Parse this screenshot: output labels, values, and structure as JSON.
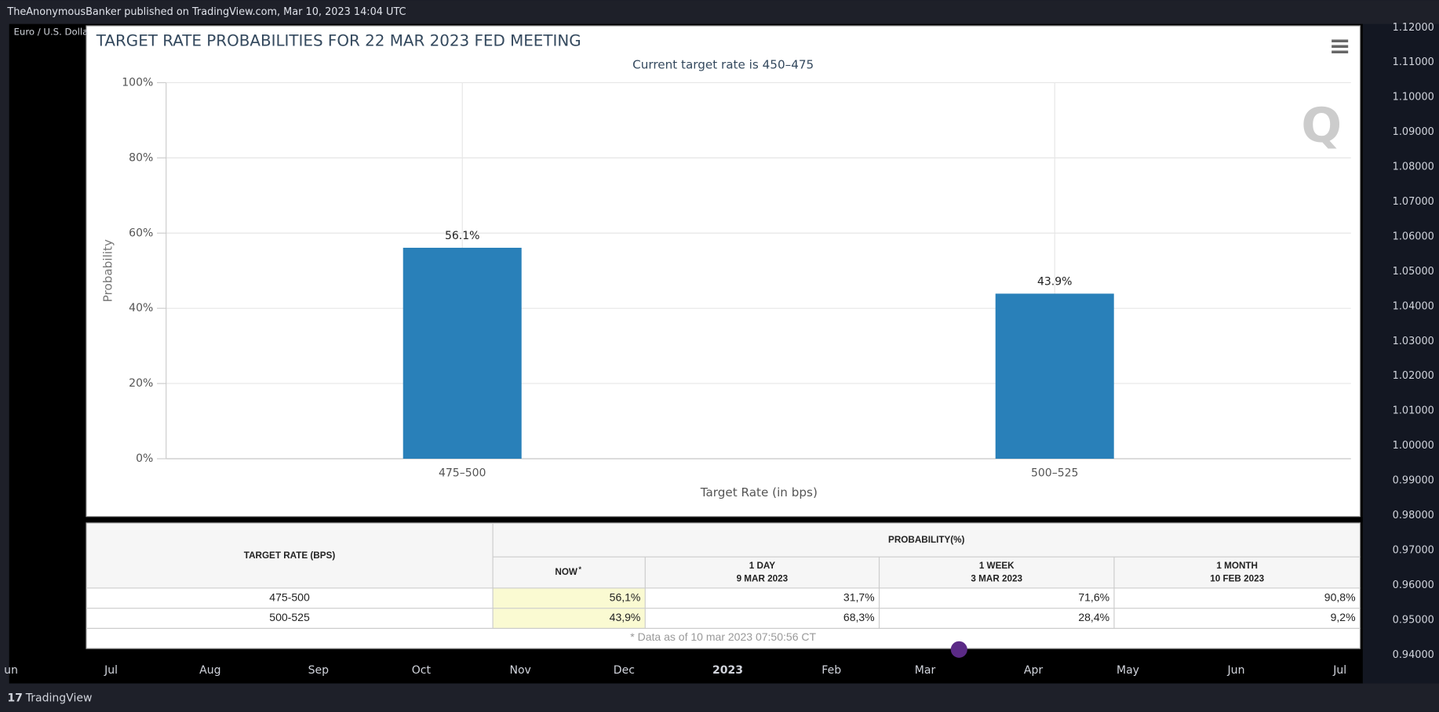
{
  "header": "TheAnonymousBanker published on TradingView.com, Mar 10, 2023 14:04 UTC",
  "symbol": "Euro / U.S. Dolla",
  "price_axis": [
    "1.12000",
    "1.11000",
    "1.10000",
    "1.09000",
    "1.08000",
    "1.07000",
    "1.06000",
    "1.05000",
    "1.04000",
    "1.03000",
    "1.02000",
    "1.01000",
    "1.00000",
    "0.99000",
    "0.98000",
    "0.97000",
    "0.96000",
    "0.95000",
    "0.94000"
  ],
  "time_axis": [
    "un",
    "Jul",
    "Aug",
    "Sep",
    "Oct",
    "Nov",
    "Dec",
    "2023",
    "Feb",
    "Mar",
    "Apr",
    "May",
    "Jun",
    "Jul"
  ],
  "footer": "TradingView",
  "chart_data": {
    "type": "bar",
    "title": "TARGET RATE PROBABILITIES FOR 22 MAR 2023 FED MEETING",
    "subtitle": "Current target rate is 450–475",
    "x_label": "Target Rate (in bps)",
    "y_label": "Probability",
    "categories": [
      "475–500",
      "500–525"
    ],
    "values": [
      56.1,
      43.9
    ],
    "value_labels": [
      "56.1%",
      "43.9%"
    ],
    "color": "#2980b9",
    "ylim": [
      0,
      100
    ],
    "yticks": [
      {
        "value": 0,
        "label": "0%"
      },
      {
        "value": 20,
        "label": "20%"
      },
      {
        "value": 40,
        "label": "40%"
      },
      {
        "value": 60,
        "label": "60%"
      },
      {
        "value": 80,
        "label": "80%"
      },
      {
        "value": 100,
        "label": "100%"
      }
    ],
    "grid": true
  },
  "table": {
    "row_header": "TARGET RATE (BPS)",
    "group_header": "PROBABILITY(%)",
    "columns": [
      {
        "label": "NOW",
        "note": "*"
      },
      {
        "label": "1 DAY",
        "date": "9 MAR 2023"
      },
      {
        "label": "1 WEEK",
        "date": "3 MAR 2023"
      },
      {
        "label": "1 MONTH",
        "date": "10 FEB 2023"
      }
    ],
    "rows": [
      [
        "475-500",
        "56,1%",
        "31,7%",
        "71,6%",
        "90,8%"
      ],
      [
        "500-525",
        "43,9%",
        "68,3%",
        "28,4%",
        "9,2%"
      ]
    ],
    "footnote": "* Data as of 10 mar 2023 07:50:56 CT"
  }
}
